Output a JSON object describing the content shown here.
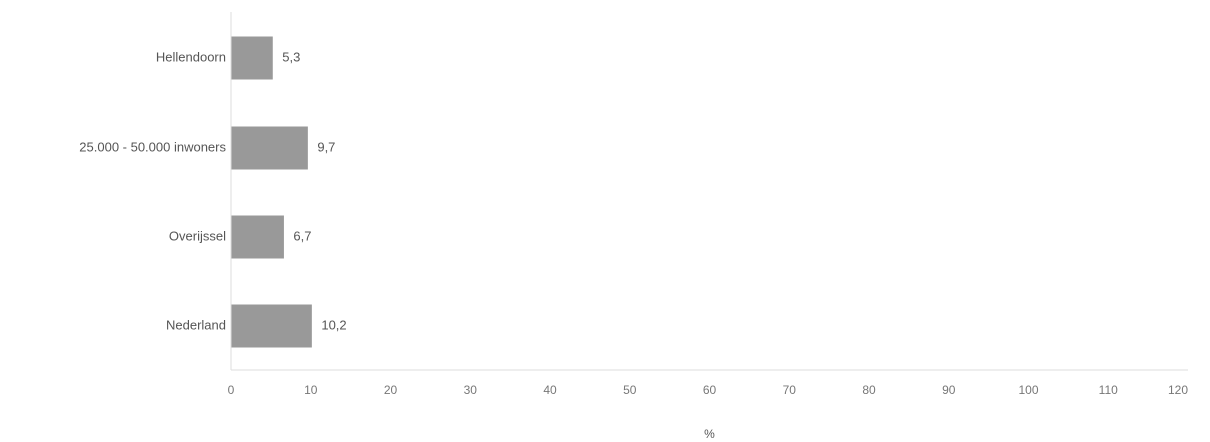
{
  "chart_data": {
    "type": "bar",
    "orientation": "horizontal",
    "categories": [
      "Hellendoorn",
      "25.000 - 50.000 inwoners",
      "Overijssel",
      "Nederland"
    ],
    "values": [
      5.3,
      9.7,
      6.7,
      10.2
    ],
    "value_labels": [
      "5,3",
      "9,7",
      "6,7",
      "10,2"
    ],
    "xlabel": "%",
    "ylabel": "",
    "xlim": [
      0,
      120
    ],
    "x_ticks": [
      "0",
      "10",
      "20",
      "30",
      "40",
      "50",
      "60",
      "70",
      "80",
      "90",
      "100",
      "110",
      "120"
    ],
    "grid": false,
    "bar_color": "#999999",
    "bar_stroke": "#ffffff"
  }
}
